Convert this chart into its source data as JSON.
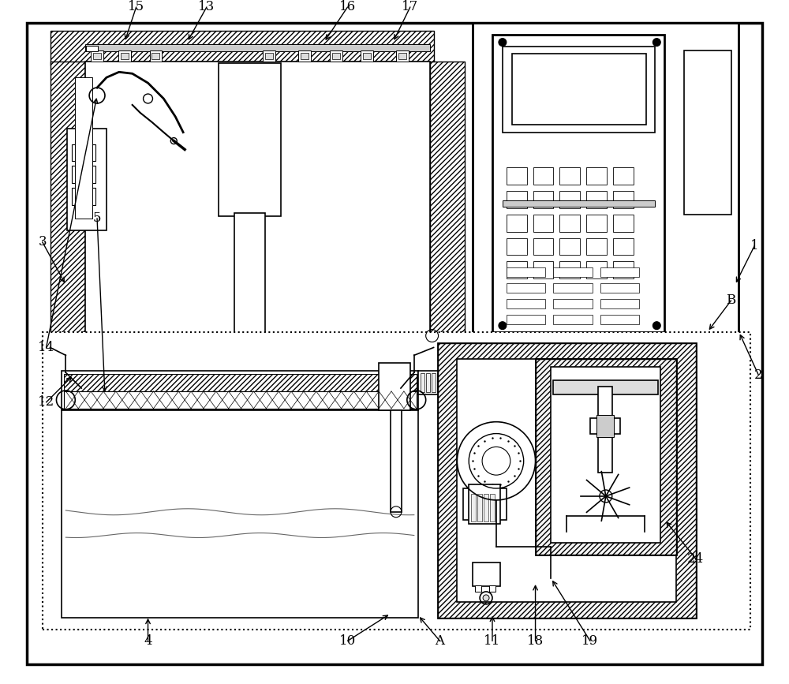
{
  "bg_color": "#ffffff",
  "line_color": "#000000",
  "gray": "#888888",
  "light_gray": "#cccccc"
}
